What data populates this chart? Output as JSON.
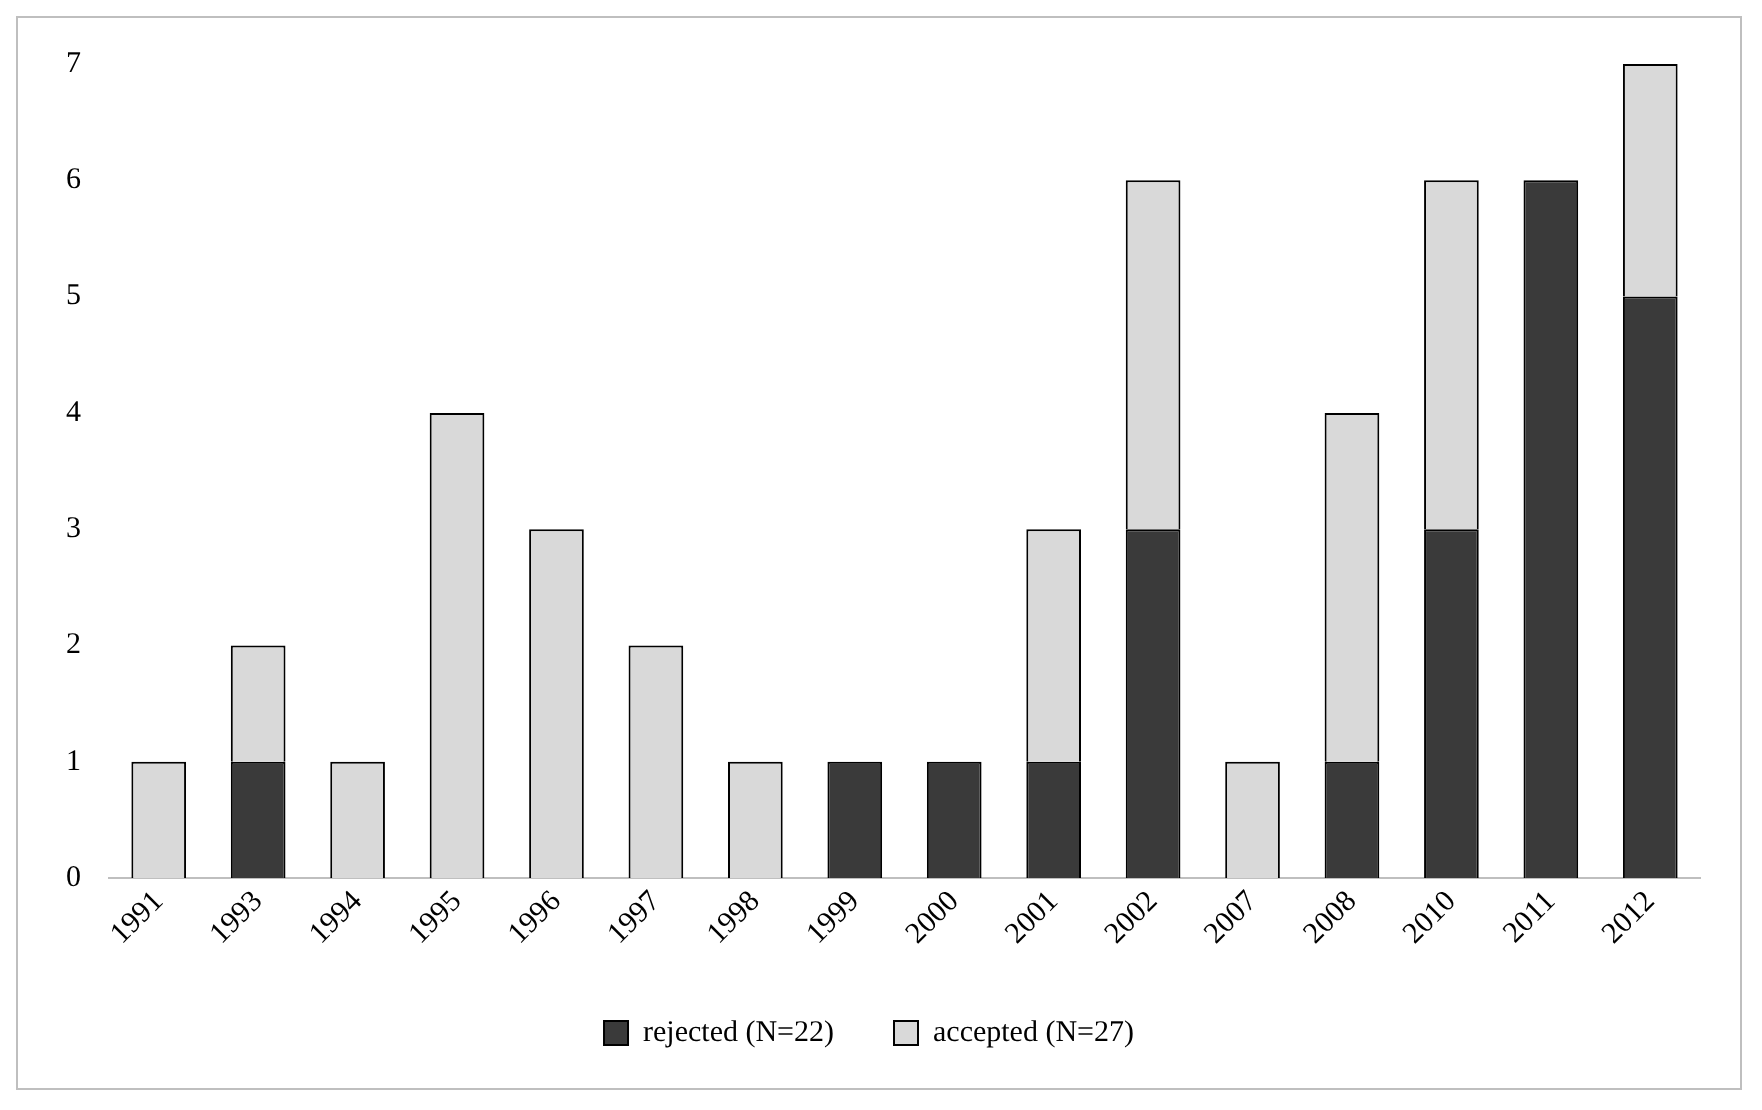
{
  "chart_data": {
    "type": "bar",
    "stacked": true,
    "categories": [
      "1991",
      "1993",
      "1994",
      "1995",
      "1996",
      "1997",
      "1998",
      "1999",
      "2000",
      "2001",
      "2002",
      "2007",
      "2008",
      "2010",
      "2011",
      "2012"
    ],
    "series": [
      {
        "name": "rejected (N=22)",
        "color": "#3a3a3a",
        "values": [
          0,
          1,
          0,
          0,
          0,
          0,
          0,
          1,
          1,
          1,
          3,
          0,
          1,
          3,
          6,
          5
        ]
      },
      {
        "name": "accepted (N=27)",
        "color": "#d9d9d9",
        "values": [
          1,
          1,
          1,
          4,
          3,
          2,
          1,
          0,
          0,
          2,
          3,
          1,
          3,
          3,
          0,
          2
        ]
      }
    ],
    "ylim": [
      0,
      7
    ],
    "yticks": [
      0,
      1,
      2,
      3,
      4,
      5,
      6,
      7
    ],
    "grid": false,
    "legend": "bottom"
  }
}
